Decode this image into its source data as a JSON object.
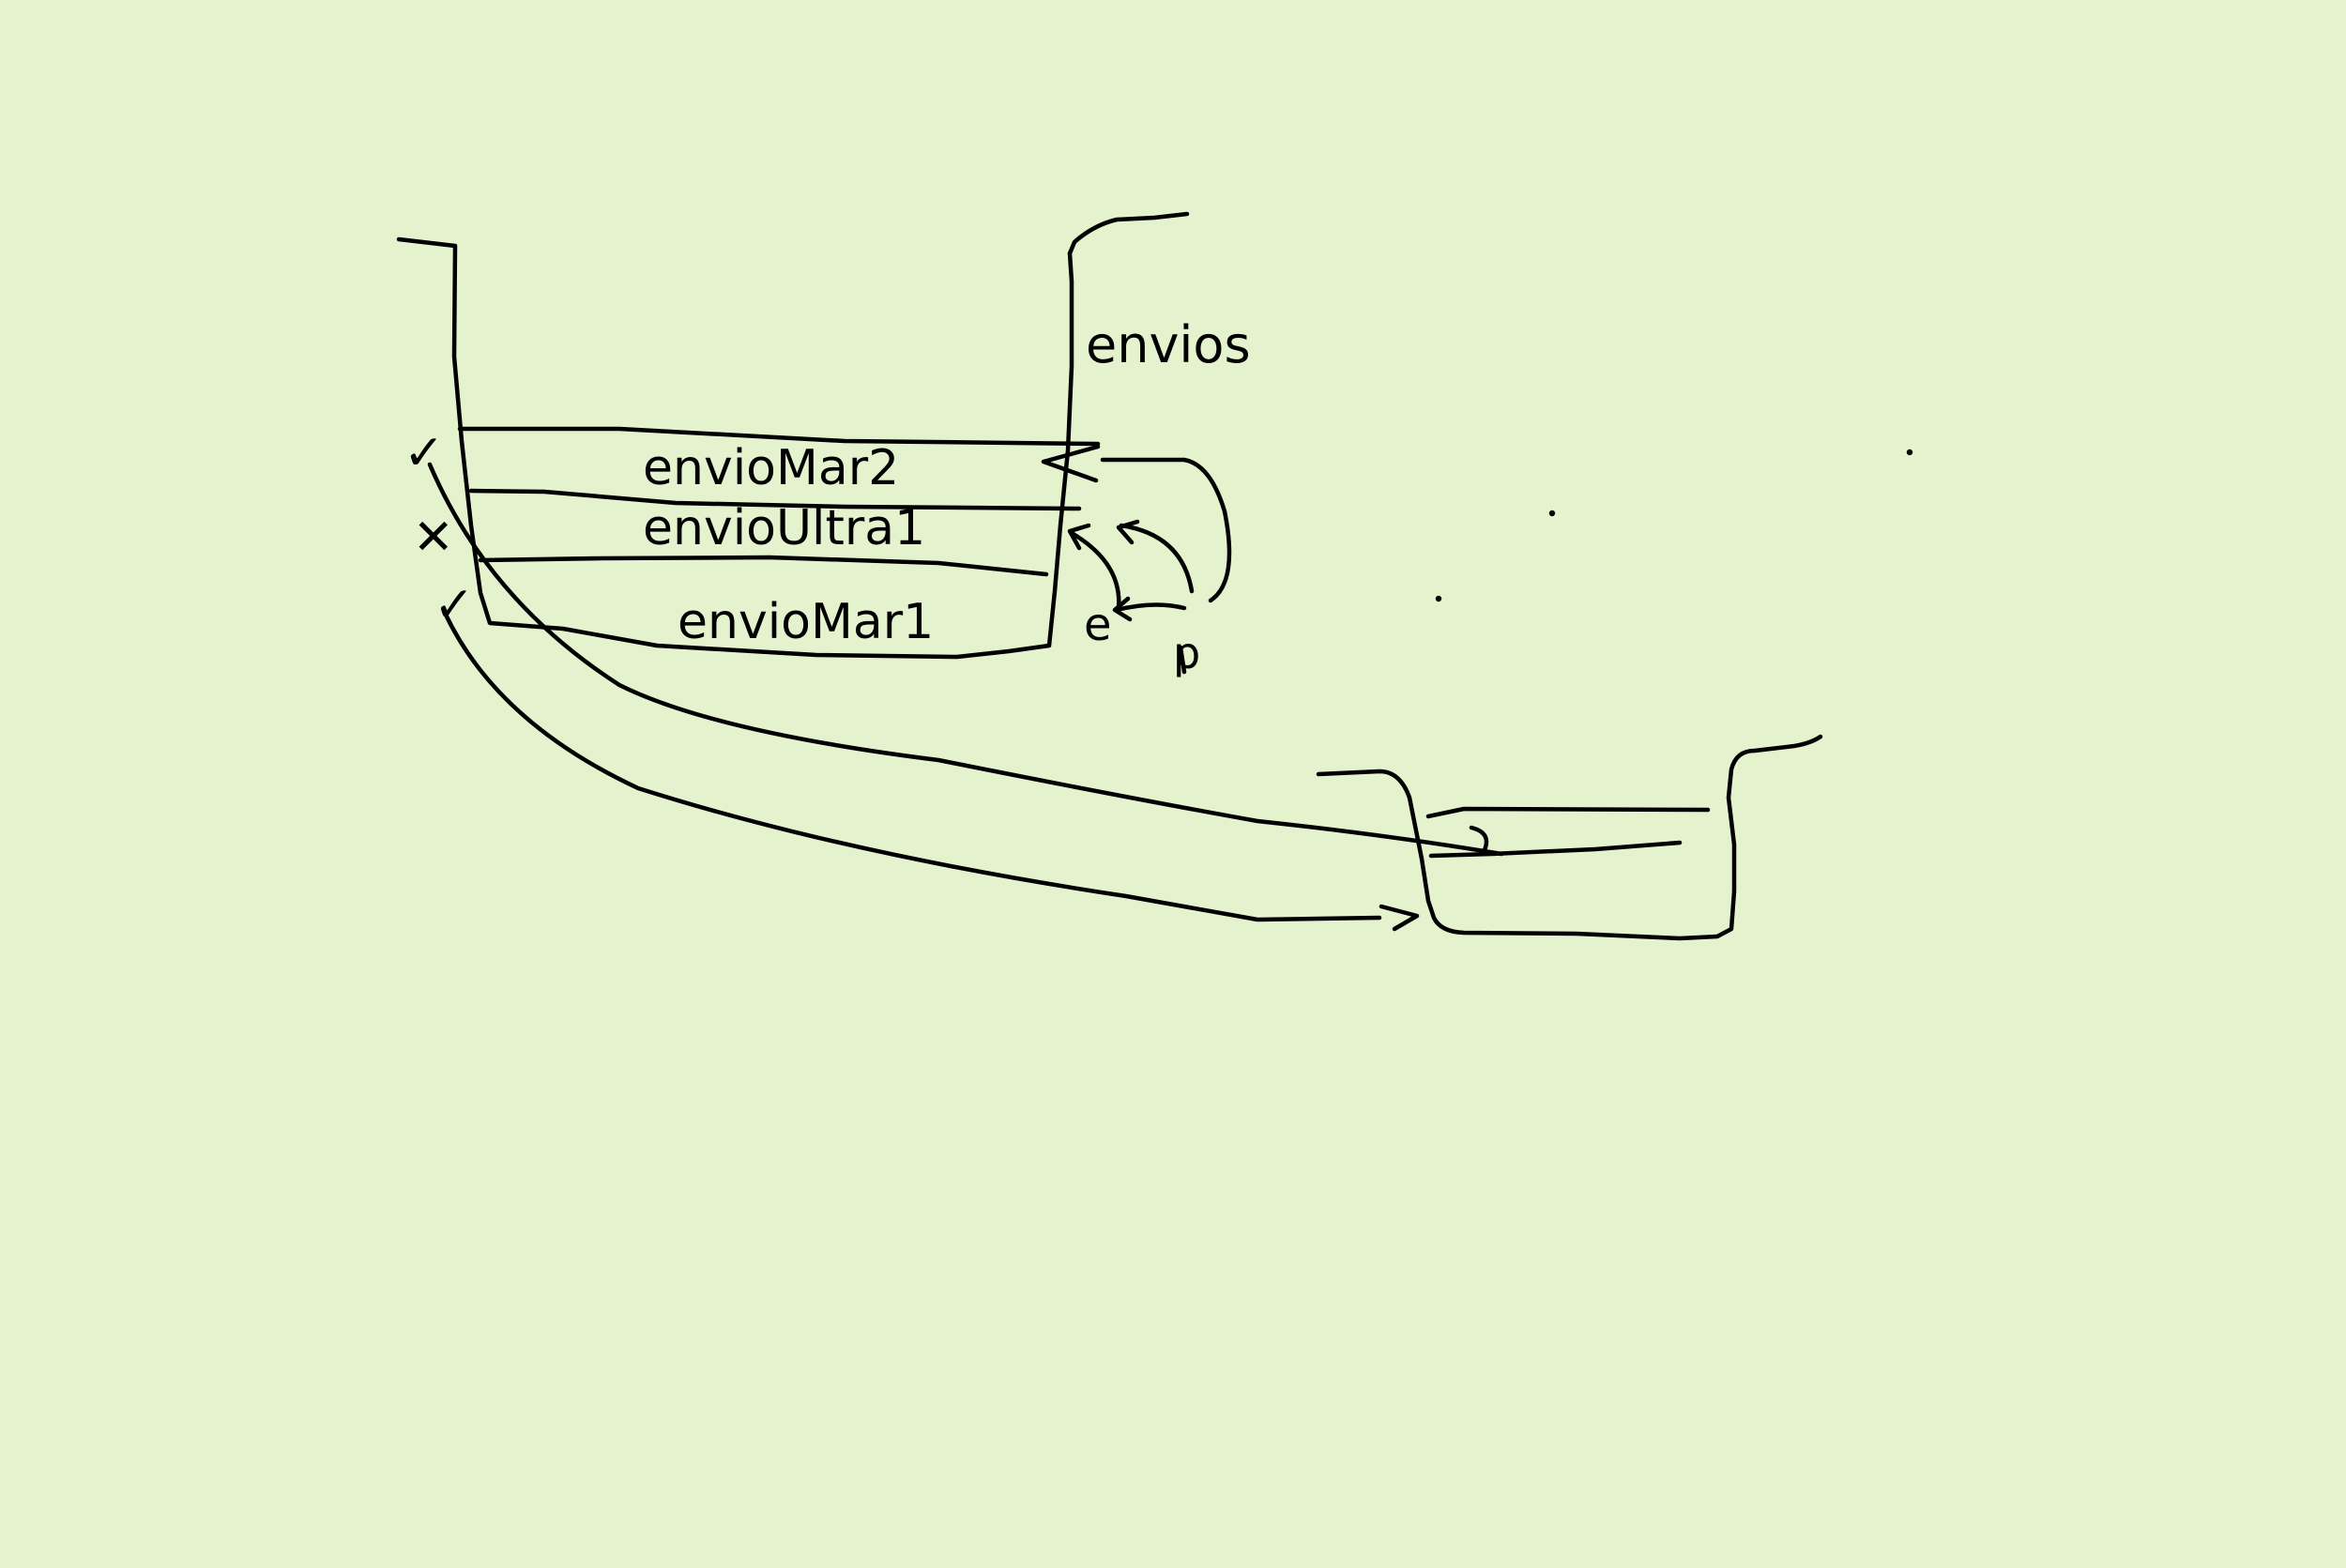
{
  "canvas": {
    "background": "#e4f3cd",
    "ink": "#000000"
  },
  "stack": {
    "name": "envios",
    "items": [
      "envioMar2",
      "envioUltra1",
      "envioMar1"
    ],
    "marks": [
      "✓",
      "✕",
      "✓"
    ]
  },
  "pointers": {
    "e": "e",
    "p": "p"
  }
}
